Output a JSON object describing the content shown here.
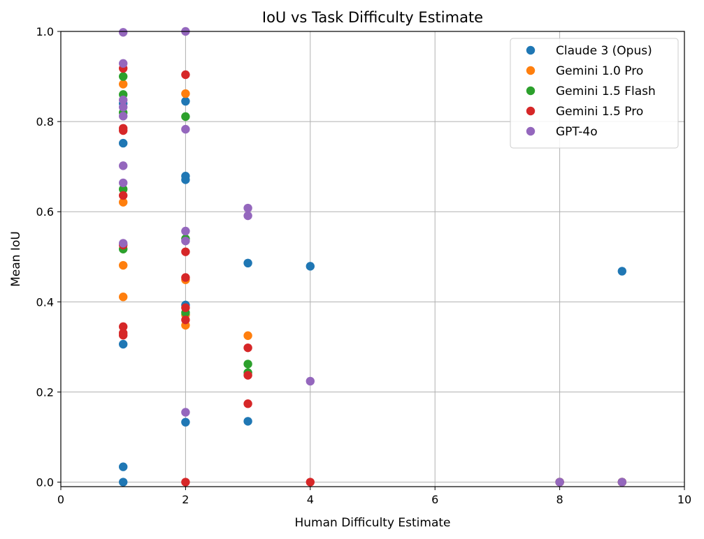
{
  "chart_data": {
    "type": "scatter",
    "title": "IoU vs Task Difficulty Estimate",
    "xlabel": "Human Difficulty Estimate",
    "ylabel": "Mean IoU",
    "xlim": [
      0,
      10
    ],
    "ylim": [
      -0.01,
      1.0
    ],
    "xticks": [
      0,
      2,
      4,
      6,
      8,
      10
    ],
    "yticks": [
      0.0,
      0.2,
      0.4,
      0.6,
      0.8,
      1.0
    ],
    "xtick_labels": [
      "0",
      "2",
      "4",
      "6",
      "8",
      "10"
    ],
    "ytick_labels": [
      "0.0",
      "0.2",
      "0.4",
      "0.6",
      "0.8",
      "1.0"
    ],
    "grid": true,
    "legend_position": "top-right",
    "series": [
      {
        "name": "Claude 3 (Opus)",
        "color": "#1f77b4",
        "points": [
          [
            1,
            0.0
          ],
          [
            1,
            0.034
          ],
          [
            1,
            0.306
          ],
          [
            1,
            0.752
          ],
          [
            1,
            0.84
          ],
          [
            2,
            0.133
          ],
          [
            2,
            0.393
          ],
          [
            2,
            0.671
          ],
          [
            2,
            0.679
          ],
          [
            2,
            0.845
          ],
          [
            3,
            0.135
          ],
          [
            3,
            0.486
          ],
          [
            4,
            0.479
          ],
          [
            8,
            0.0
          ],
          [
            9,
            0.0
          ],
          [
            9,
            0.468
          ]
        ]
      },
      {
        "name": "Gemini 1.0 Pro",
        "color": "#ff7f0e",
        "points": [
          [
            1,
            0.411
          ],
          [
            1,
            0.481
          ],
          [
            1,
            0.621
          ],
          [
            1,
            0.883
          ],
          [
            2,
            0.348
          ],
          [
            2,
            0.371
          ],
          [
            2,
            0.449
          ],
          [
            2,
            0.862
          ],
          [
            3,
            0.325
          ],
          [
            8,
            0.0
          ],
          [
            9,
            0.0
          ]
        ]
      },
      {
        "name": "Gemini 1.5 Flash",
        "color": "#2ca02c",
        "points": [
          [
            1,
            0.517
          ],
          [
            1,
            0.65
          ],
          [
            1,
            0.82
          ],
          [
            1,
            0.86
          ],
          [
            1,
            0.9
          ],
          [
            2,
            0.376
          ],
          [
            2,
            0.54
          ],
          [
            2,
            0.811
          ],
          [
            3,
            0.243
          ],
          [
            3,
            0.262
          ],
          [
            8,
            0.0
          ],
          [
            9,
            0.0
          ]
        ]
      },
      {
        "name": "Gemini 1.5 Pro",
        "color": "#d62728",
        "points": [
          [
            1,
            0.326
          ],
          [
            1,
            0.331
          ],
          [
            1,
            0.345
          ],
          [
            1,
            0.526
          ],
          [
            1,
            0.636
          ],
          [
            1,
            0.78
          ],
          [
            1,
            0.785
          ],
          [
            1,
            0.918
          ],
          [
            2,
            0.0
          ],
          [
            2,
            0.36
          ],
          [
            2,
            0.387
          ],
          [
            2,
            0.454
          ],
          [
            2,
            0.511
          ],
          [
            2,
            0.904
          ],
          [
            3,
            0.174
          ],
          [
            3,
            0.237
          ],
          [
            3,
            0.298
          ],
          [
            4,
            0.0
          ],
          [
            8,
            0.0
          ],
          [
            9,
            0.0
          ]
        ]
      },
      {
        "name": "GPT-4o",
        "color": "#9467bd",
        "points": [
          [
            1,
            0.53
          ],
          [
            1,
            0.664
          ],
          [
            1,
            0.702
          ],
          [
            1,
            0.812
          ],
          [
            1,
            0.832
          ],
          [
            1,
            0.848
          ],
          [
            1,
            0.929
          ],
          [
            1,
            0.998
          ],
          [
            2,
            0.155
          ],
          [
            2,
            0.535
          ],
          [
            2,
            0.557
          ],
          [
            2,
            0.783
          ],
          [
            2,
            1.0
          ],
          [
            3,
            0.591
          ],
          [
            3,
            0.608
          ],
          [
            4,
            0.224
          ],
          [
            8,
            0.0
          ],
          [
            9,
            0.0
          ]
        ]
      }
    ]
  }
}
